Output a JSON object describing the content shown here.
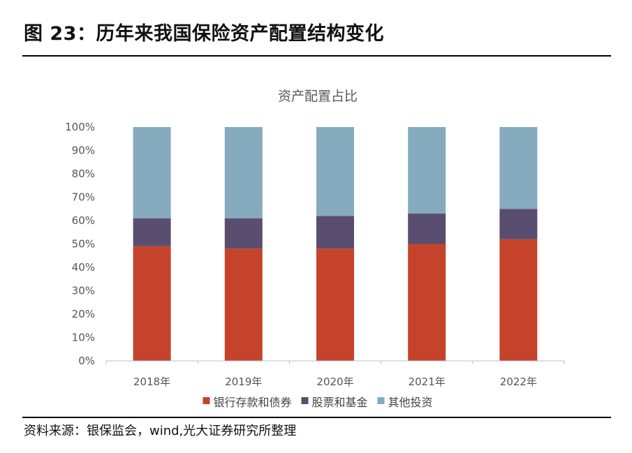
{
  "figure": {
    "title": "图 23：历年来我国保险资产配置结构变化",
    "source": "资料来源：银保监会，wind,光大证券研究所整理"
  },
  "chart_data": {
    "type": "bar",
    "stacked": true,
    "percent": true,
    "title": "资产配置占比",
    "categories": [
      "2018年",
      "2019年",
      "2020年",
      "2021年",
      "2022年"
    ],
    "series": [
      {
        "name": "银行存款和债券",
        "color": "#C5432A",
        "values": [
          49,
          48,
          48,
          50,
          52
        ]
      },
      {
        "name": "股票和基金",
        "color": "#5A4E70",
        "values": [
          12,
          13,
          14,
          13,
          13
        ]
      },
      {
        "name": "其他投资",
        "color": "#86ABBF",
        "values": [
          39,
          39,
          38,
          37,
          35
        ]
      }
    ],
    "yticks": [
      "0%",
      "10%",
      "20%",
      "30%",
      "40%",
      "50%",
      "60%",
      "70%",
      "80%",
      "90%",
      "100%"
    ],
    "ylim": [
      0,
      100
    ],
    "xlabel": "",
    "ylabel": "",
    "legend": "bottom",
    "grid": false
  }
}
